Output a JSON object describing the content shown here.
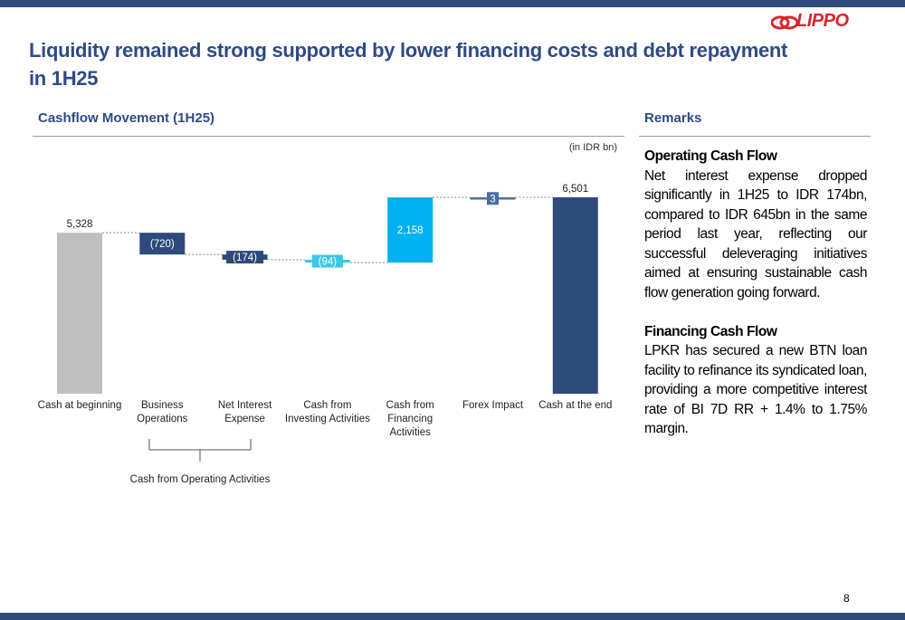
{
  "title": "Liquidity remained strong supported by lower financing costs and debt repayment in 1H25",
  "logo": "LIPPO",
  "page_number": "8",
  "chart_data": {
    "type": "waterfall",
    "title": "Cashflow Movement (1H25)",
    "unit_note": "(in IDR bn)",
    "categories": [
      "Cash at beginning",
      "Business Operations",
      "Net Interest Expense",
      "Cash from Investing Activities",
      "Cash from Financing Activities",
      "Forex Impact",
      "Cash at the end"
    ],
    "values": [
      5328,
      -720,
      -174,
      -94,
      2158,
      3,
      6501
    ],
    "value_labels": [
      "5,328",
      "(720)",
      "(174)",
      "(94)",
      "2,158",
      "3",
      "6,501"
    ],
    "colors": [
      "#bfbfbf",
      "#2e4a7a",
      "#2e4a7a",
      "#3cc8e6",
      "#00b0f0",
      "#4a6ea0",
      "#2f4b7c"
    ],
    "annotation": "Cash from Operating Activities"
  },
  "remarks": {
    "title": "Remarks",
    "sections": [
      {
        "heading": "Operating Cash Flow",
        "text": "Net interest expense dropped significantly in 1H25 to IDR 174bn, compared to IDR 645bn in the same period last year, reflecting our successful deleveraging initiatives aimed at ensuring sustainable cash flow generation going forward."
      },
      {
        "heading": "Financing Cash Flow",
        "text": "LPKR has secured a new BTN loan facility to refinance its syndicated loan, providing a more competitive interest rate of BI 7D RR + 1.4% to 1.75% margin."
      }
    ]
  }
}
